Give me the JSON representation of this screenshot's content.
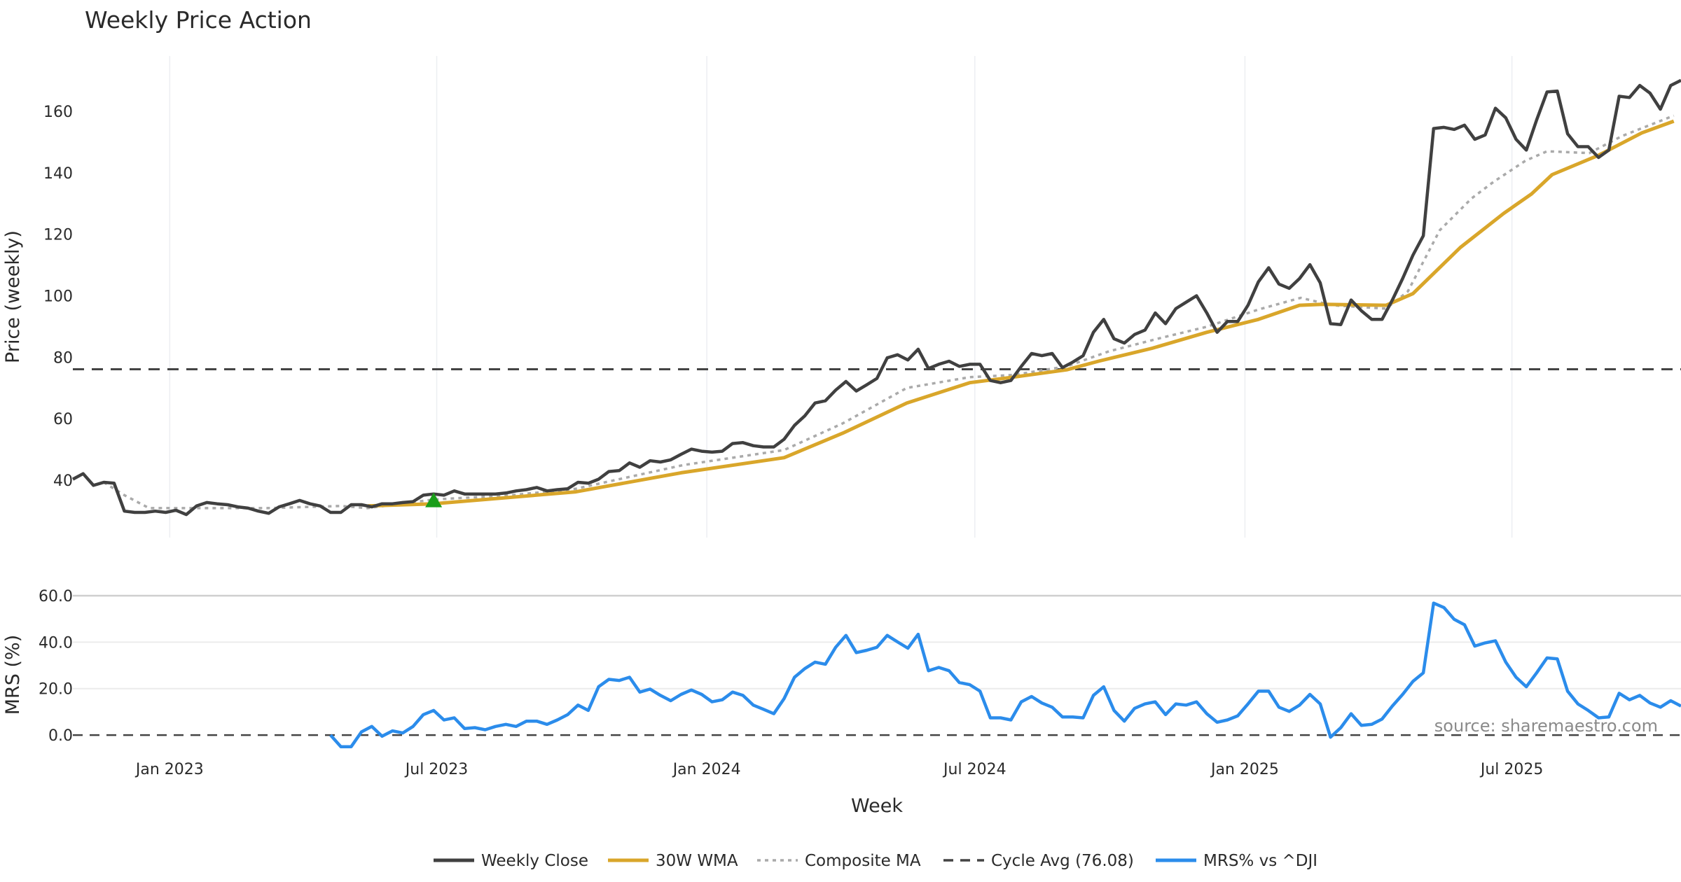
{
  "chart_data": [
    {
      "type": "line",
      "title": "Weekly Price Action",
      "ylabel": "Price (weekly)",
      "ylim": [
        21.3,
        178
      ],
      "yticks": [
        40,
        60,
        80,
        100,
        120,
        140,
        160
      ],
      "xlim_week_index": [
        0,
        156
      ],
      "xticks": [
        {
          "label": "Jan 2023",
          "week_index": 9.4
        },
        {
          "label": "Jul 2023",
          "week_index": 35.3
        },
        {
          "label": "Jan 2024",
          "week_index": 61.5
        },
        {
          "label": "Jul 2024",
          "week_index": 87.5
        },
        {
          "label": "Jan 2025",
          "week_index": 113.7
        },
        {
          "label": "Jul 2025",
          "week_index": 139.6
        }
      ],
      "grid": "vertical",
      "series": [
        {
          "name": "Weekly Close",
          "color": "#404040",
          "values": [
            40.3,
            42.1,
            38.3,
            39.3,
            39,
            29.9,
            29.5,
            29.5,
            29.9,
            29.5,
            30.2,
            28.8,
            31.6,
            32.7,
            32.3,
            32,
            31.3,
            30.9,
            29.9,
            29.2,
            31.3,
            32.3,
            33.4,
            32.3,
            31.6,
            29.5,
            29.5,
            32,
            32,
            31.3,
            32.3,
            32.3,
            32.7,
            33,
            35.1,
            35.5,
            35.1,
            36.5,
            35.5,
            35.5,
            35.5,
            35.5,
            35.8,
            36.5,
            36.9,
            37.6,
            36.5,
            36.9,
            37.2,
            39.3,
            39,
            40.3,
            42.8,
            43.1,
            45.6,
            44.2,
            46.3,
            45.9,
            46.6,
            48.4,
            50.1,
            49.4,
            49.1,
            49.4,
            51.9,
            52.2,
            51.2,
            50.8,
            50.8,
            53.3,
            57.8,
            60.9,
            65.1,
            65.8,
            69.3,
            72.1,
            69,
            71,
            73.1,
            79.8,
            80.8,
            79.1,
            82.6,
            76.3,
            77.7,
            78.7,
            77,
            77.7,
            77.7,
            72.4,
            71.7,
            72.4,
            77,
            81.2,
            80.5,
            81.2,
            76.6,
            78.4,
            80.5,
            88.1,
            92.3,
            86,
            84.6,
            87.4,
            88.8,
            94.4,
            90.9,
            95.8,
            97.9,
            100,
            94.4,
            88.1,
            91.6,
            91.6,
            96.9,
            104.5,
            109.1,
            103.8,
            102.4,
            105.6,
            110.1,
            104.2,
            90.9,
            90.6,
            98.6,
            95.1,
            92.3,
            92.3,
            98.6,
            105.6,
            113.2,
            119.5,
            154.4,
            154.8,
            154.1,
            155.5,
            150.9,
            152.3,
            161,
            157.9,
            150.9,
            147.4,
            157.2,
            166.3,
            166.6,
            152.7,
            148.5,
            148.5,
            145,
            147.4,
            164.9,
            164.5,
            168.4,
            165.9,
            160.7,
            168.4,
            170.1
          ]
        },
        {
          "name": "30W WMA",
          "color": "#d9a62a",
          "points": [
            [
              28.6,
              31.6
            ],
            [
              35,
              32.3
            ],
            [
              48.8,
              36.2
            ],
            [
              59,
              42.4
            ],
            [
              69,
              47.3
            ],
            [
              74.7,
              55.3
            ],
            [
              80.9,
              65.1
            ],
            [
              87,
              71.7
            ],
            [
              91.2,
              73.5
            ],
            [
              96.4,
              75.9
            ],
            [
              99.5,
              78.7
            ],
            [
              104.7,
              82.9
            ],
            [
              110,
              88.1
            ],
            [
              115,
              92.3
            ],
            [
              119,
              96.9
            ],
            [
              121.2,
              97.2
            ],
            [
              127.4,
              96.9
            ],
            [
              130,
              100.7
            ],
            [
              134.6,
              115.7
            ],
            [
              138.8,
              126.8
            ],
            [
              141.5,
              133.1
            ],
            [
              143.5,
              139.4
            ],
            [
              148,
              145.7
            ],
            [
              152.2,
              153
            ],
            [
              155.3,
              156.8
            ]
          ]
        },
        {
          "name": "Composite MA",
          "color": "#aaaaaa",
          "points": [
            [
              3,
              39.3
            ],
            [
              5,
              35.1
            ],
            [
              7.4,
              30.9
            ],
            [
              12.1,
              30.9
            ],
            [
              18.8,
              30.9
            ],
            [
              26,
              31.6
            ],
            [
              28.6,
              30.9
            ],
            [
              35,
              33.7
            ],
            [
              42.6,
              35.1
            ],
            [
              48.8,
              37.2
            ],
            [
              59.2,
              44.9
            ],
            [
              69,
              49.8
            ],
            [
              74.7,
              58.5
            ],
            [
              80.9,
              70
            ],
            [
              87,
              73.5
            ],
            [
              91.2,
              74.2
            ],
            [
              96.4,
              77
            ],
            [
              100.5,
              81.9
            ],
            [
              105.7,
              86.4
            ],
            [
              110,
              89.9
            ],
            [
              115,
              95.5
            ],
            [
              119.1,
              99.3
            ],
            [
              122.2,
              96.9
            ],
            [
              127.4,
              95.8
            ],
            [
              129.5,
              101.4
            ],
            [
              132.6,
              121.3
            ],
            [
              135.7,
              131.7
            ],
            [
              137.8,
              137
            ],
            [
              140.9,
              143.9
            ],
            [
              143,
              147
            ],
            [
              147.1,
              146.4
            ],
            [
              150.3,
              152
            ],
            [
              155.3,
              158.6
            ]
          ]
        },
        {
          "name": "Cycle Avg (76.08)",
          "color": "#444444",
          "value": 76.08
        }
      ],
      "signal_marker": {
        "name": "buy-signal",
        "week_index": 35,
        "value": 33,
        "color": "#1a9e1a"
      }
    },
    {
      "type": "line",
      "ylabel": "MRS (%)",
      "xlabel": "Week",
      "ylim": [
        -6.6,
        60
      ],
      "yticks": [
        "0.0",
        "20.0",
        "40.0",
        "60.0"
      ],
      "ytick_values": [
        0,
        20,
        40,
        60
      ],
      "series": [
        {
          "name": "MRS% vs ^DJI",
          "color": "#2b8ceb",
          "start_week_index": 25,
          "values": [
            0,
            -5,
            -5,
            1.4,
            3.7,
            -0.5,
            1.8,
            0.9,
            3.7,
            8.8,
            10.6,
            6.5,
            7.4,
            2.8,
            3.2,
            2.3,
            3.7,
            4.6,
            3.7,
            6,
            6,
            4.6,
            6.5,
            8.8,
            12.9,
            10.6,
            20.8,
            24,
            23.5,
            24.9,
            18.5,
            19.8,
            17.1,
            14.8,
            17.5,
            19.4,
            17.5,
            14.3,
            15.2,
            18.5,
            17.1,
            12.9,
            11.1,
            9.2,
            15.7,
            24.9,
            28.6,
            31.4,
            30.5,
            37.8,
            42.9,
            35.5,
            36.5,
            37.8,
            42.9,
            40.1,
            37.4,
            43.4,
            27.7,
            29.1,
            27.7,
            22.6,
            21.7,
            18.9,
            7.4,
            7.4,
            6.5,
            14.3,
            16.6,
            13.8,
            12,
            7.8,
            7.8,
            7.4,
            17.1,
            20.8,
            10.6,
            6,
            11.5,
            13.4,
            14.3,
            8.8,
            13.4,
            12.9,
            14.3,
            9.2,
            5.5,
            6.5,
            8.3,
            13.4,
            18.9,
            18.9,
            12,
            10.2,
            12.9,
            17.5,
            13.4,
            -0.9,
            3.2,
            9.2,
            4.2,
            4.6,
            6.9,
            12.5,
            17.5,
            23.1,
            26.8,
            56.8,
            54.9,
            49.8,
            47.5,
            38.3,
            39.7,
            40.6,
            31.4,
            24.9,
            20.8,
            26.8,
            33.2,
            32.8,
            18.9,
            13.4,
            10.6,
            7.4,
            7.8,
            18,
            15.2,
            17.1,
            13.8,
            12,
            14.8,
            12.5
          ]
        }
      ],
      "zero_line": 0
    }
  ],
  "annotation": "source: sharemaestro.com",
  "legend": {
    "placement": "bottom-center",
    "items": [
      {
        "label": "Weekly Close",
        "color": "#404040",
        "style": "solid"
      },
      {
        "label": "30W WMA",
        "color": "#d9a62a",
        "style": "solid"
      },
      {
        "label": "Composite MA",
        "color": "#aaaaaa",
        "style": "dotted"
      },
      {
        "label": "Cycle Avg (76.08)",
        "color": "#444444",
        "style": "dashed"
      },
      {
        "label": "MRS% vs ^DJI",
        "color": "#2b8ceb",
        "style": "solid"
      }
    ]
  }
}
